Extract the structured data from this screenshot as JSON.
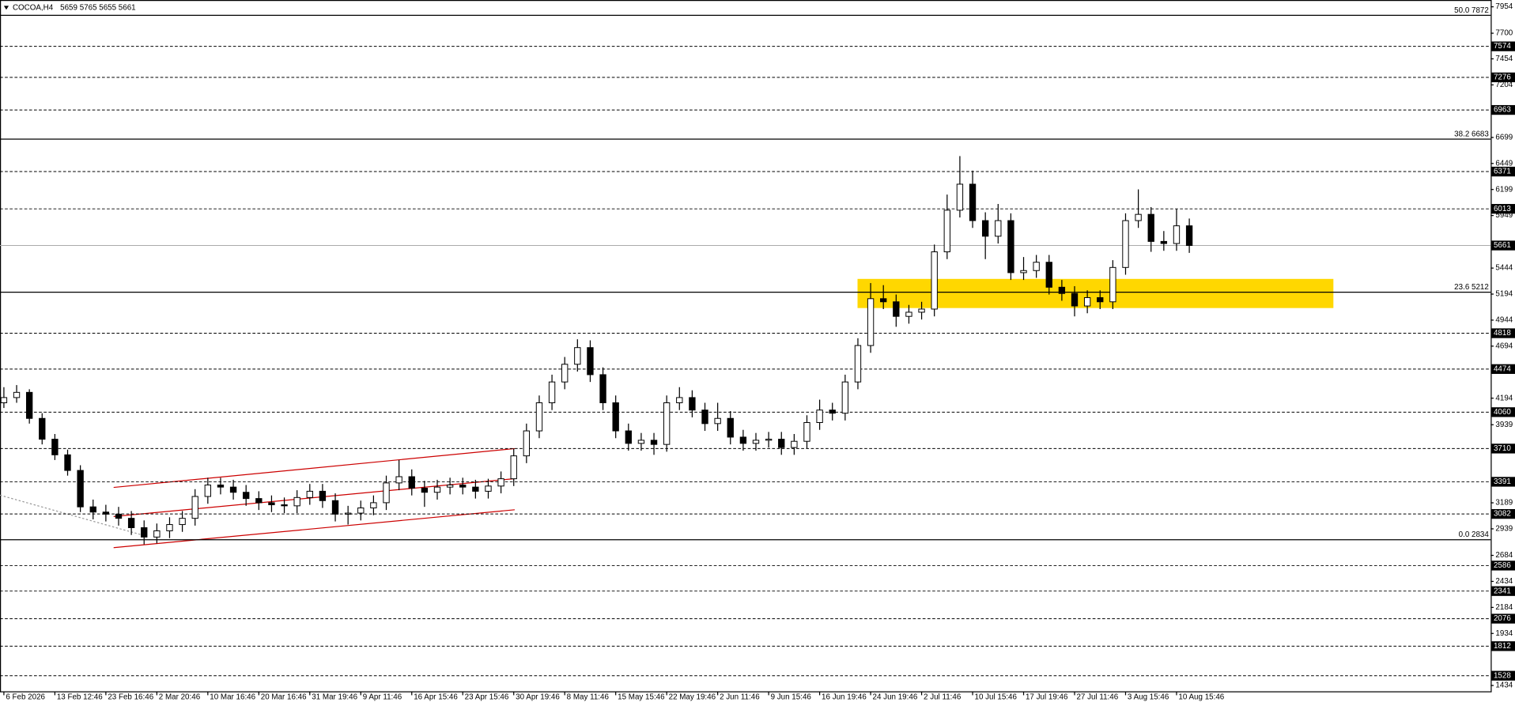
{
  "chart_data": {
    "type": "candlestick",
    "title": "COCOA,H4",
    "header_ohlc": "5659 5765 5655 5661",
    "open": [
      4150,
      4200,
      4250,
      4000,
      3800,
      3650,
      3500,
      3150,
      3100,
      3080,
      3040,
      2950,
      2860,
      2920,
      2980,
      3040,
      3250,
      3360,
      3340,
      3290,
      3230,
      3190,
      3170,
      3160,
      3240,
      3300,
      3210,
      3080,
      3090,
      3140,
      3190,
      3380,
      3440,
      3330,
      3290,
      3340,
      3360,
      3340,
      3300,
      3350,
      3420,
      3640,
      3880,
      4150,
      4350,
      4520,
      4680,
      4420,
      4150,
      3880,
      3760,
      3790,
      3750,
      4150,
      4200,
      4080,
      3950,
      4000,
      3820,
      3760,
      3790,
      3800,
      3720,
      3780,
      3960,
      4080,
      4050,
      4350,
      4700,
      5150,
      5120,
      4980,
      5020,
      5050,
      5600,
      6000,
      6250,
      5900,
      5750,
      5900,
      5400,
      5420,
      5500,
      5260,
      5200,
      5080,
      5160,
      5120,
      5450,
      5900,
      5960,
      5700,
      5680,
      5850
    ],
    "high": [
      4300,
      4320,
      4280,
      4050,
      3850,
      3700,
      3550,
      3220,
      3170,
      3150,
      3110,
      3020,
      2990,
      3050,
      3110,
      3320,
      3430,
      3430,
      3410,
      3360,
      3300,
      3260,
      3240,
      3310,
      3370,
      3370,
      3280,
      3160,
      3210,
      3260,
      3450,
      3600,
      3510,
      3400,
      3410,
      3430,
      3430,
      3410,
      3420,
      3490,
      3710,
      3950,
      4220,
      4420,
      4590,
      4760,
      4750,
      4490,
      4220,
      3950,
      3860,
      3860,
      4220,
      4300,
      4270,
      4150,
      4150,
      4070,
      3890,
      3860,
      3870,
      3870,
      3850,
      4030,
      4180,
      4150,
      4420,
      4770,
      5300,
      5280,
      5190,
      5090,
      5120,
      5670,
      6150,
      6520,
      6380,
      5980,
      6060,
      5970,
      5550,
      5570,
      5570,
      5330,
      5270,
      5230,
      5230,
      5520,
      5970,
      6200,
      6030,
      5800,
      6010,
      5920
    ],
    "low": [
      4100,
      4150,
      3950,
      3750,
      3600,
      3450,
      3100,
      3030,
      3010,
      2970,
      2880,
      2790,
      2800,
      2850,
      2910,
      2970,
      3180,
      3270,
      3220,
      3160,
      3120,
      3100,
      3090,
      3090,
      3170,
      3140,
      3010,
      2980,
      3020,
      3070,
      3120,
      3310,
      3260,
      3150,
      3220,
      3270,
      3270,
      3230,
      3230,
      3280,
      3350,
      3570,
      3810,
      4080,
      4280,
      4450,
      4350,
      4080,
      3810,
      3690,
      3690,
      3650,
      3680,
      4080,
      4010,
      3880,
      3880,
      3750,
      3690,
      3690,
      3720,
      3650,
      3650,
      3710,
      3890,
      3980,
      3980,
      4280,
      4630,
      5050,
      4880,
      4910,
      4950,
      4980,
      5530,
      5930,
      5830,
      5530,
      5680,
      5330,
      5330,
      5350,
      5190,
      5130,
      4980,
      5010,
      5050,
      5050,
      5380,
      5830,
      5600,
      5610,
      5610,
      5590
    ],
    "close": [
      4200,
      4250,
      4000,
      3800,
      3650,
      3500,
      3150,
      3100,
      3080,
      3040,
      2950,
      2860,
      2920,
      2980,
      3040,
      3250,
      3360,
      3340,
      3290,
      3230,
      3190,
      3170,
      3160,
      3240,
      3300,
      3210,
      3080,
      3090,
      3140,
      3190,
      3380,
      3440,
      3330,
      3290,
      3340,
      3360,
      3340,
      3300,
      3350,
      3420,
      3640,
      3880,
      4150,
      4350,
      4520,
      4680,
      4420,
      4150,
      3880,
      3760,
      3790,
      3750,
      4150,
      4200,
      4080,
      3950,
      4000,
      3820,
      3760,
      3790,
      3800,
      3720,
      3780,
      3960,
      4080,
      4050,
      4350,
      4700,
      5150,
      5120,
      4980,
      5020,
      5050,
      5600,
      6000,
      6250,
      5900,
      5750,
      5900,
      5400,
      5420,
      5500,
      5260,
      5200,
      5080,
      5160,
      5120,
      5450,
      5900,
      5960,
      5700,
      5680,
      5850,
      5661
    ],
    "xticks": [
      {
        "value": 0,
        "label": "6 Feb 2026"
      },
      {
        "value": 4,
        "label": "13 Feb 12:46"
      },
      {
        "value": 8,
        "label": "23 Feb 16:46"
      },
      {
        "value": 12,
        "label": "2 Mar 20:46"
      },
      {
        "value": 16,
        "label": "10 Mar 16:46"
      },
      {
        "value": 20,
        "label": "20 Mar 16:46"
      },
      {
        "value": 24,
        "label": "31 Mar 19:46"
      },
      {
        "value": 28,
        "label": "9 Apr 11:46"
      },
      {
        "value": 32,
        "label": "16 Apr 15:46"
      },
      {
        "value": 36,
        "label": "23 Apr 15:46"
      },
      {
        "value": 40,
        "label": "30 Apr 19:46"
      },
      {
        "value": 44,
        "label": "8 May 11:46"
      },
      {
        "value": 48,
        "label": "15 May 15:46"
      },
      {
        "value": 52,
        "label": "22 May 19:46"
      },
      {
        "value": 56,
        "label": "2 Jun 11:46"
      },
      {
        "value": 60,
        "label": "9 Jun 15:46"
      },
      {
        "value": 64,
        "label": "16 Jun 19:46"
      },
      {
        "value": 68,
        "label": "24 Jun 19:46"
      },
      {
        "value": 72,
        "label": "2 Jul 11:46"
      },
      {
        "value": 76,
        "label": "10 Jul 15:46"
      },
      {
        "value": 80,
        "label": "17 Jul 19:46"
      },
      {
        "value": 84,
        "label": "27 Jul 11:46"
      },
      {
        "value": 88,
        "label": "3 Aug 15:46"
      },
      {
        "value": 92,
        "label": "10 Aug 15:46"
      }
    ],
    "ylim": [
      1434,
      7954
    ],
    "yticks": [
      7954,
      7700,
      7454,
      7204,
      6699,
      6449,
      6199,
      5949,
      5444,
      5194,
      4944,
      4694,
      4194,
      3939,
      3189,
      2939,
      2684,
      2434,
      2184,
      1934,
      1434
    ],
    "levels": [
      7574,
      7276,
      6963,
      6371,
      6013,
      4818,
      4474,
      4060,
      3710,
      3391,
      3082,
      2586,
      2341,
      2076,
      1812,
      1528
    ],
    "fib_levels": [
      {
        "value": 7872,
        "label": "50.0 7872"
      },
      {
        "value": 6683,
        "label": "38.2 6683"
      },
      {
        "value": 5212,
        "label": "23.6 5212"
      },
      {
        "value": 2834,
        "label": "0.0 2834"
      }
    ],
    "last_price": 5661,
    "zone": {
      "low": 5060,
      "high": 5340,
      "color": "#ffd700"
    },
    "bull_color": "#ffffff",
    "bear_color": "#000000"
  }
}
